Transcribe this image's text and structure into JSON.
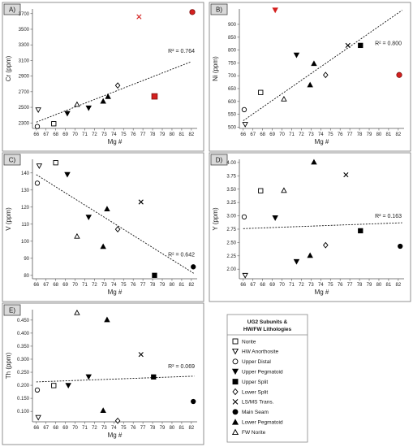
{
  "chart_data": [
    {
      "type": "scatter",
      "panel_label": "A)",
      "xlabel": "Mg #",
      "ylabel": "Cr (ppm)",
      "xticks": [
        66,
        67,
        68,
        69,
        70,
        71,
        72,
        73,
        74,
        75,
        76,
        77,
        78,
        79,
        80,
        81,
        82
      ],
      "yticks": [
        2300,
        2500,
        2700,
        2900,
        3100,
        3300,
        3500,
        3700
      ],
      "xlim": [
        65.6,
        82.6
      ],
      "ylim": [
        2230,
        3760
      ],
      "r2_label": "R² = 0.764",
      "trend": [
        [
          66,
          2310
        ],
        [
          82,
          3085
        ]
      ],
      "points": [
        {
          "lith": "norite",
          "x": 67.8,
          "y": 2290
        },
        {
          "lith": "hw_anorthosite",
          "x": 66.2,
          "y": 2465
        },
        {
          "lith": "upper_distal",
          "x": 66.1,
          "y": 2255
        },
        {
          "lith": "upper_pegmatoid",
          "x": 69.2,
          "y": 2420
        },
        {
          "lith": "upper_pegmatoid",
          "x": 71.4,
          "y": 2490
        },
        {
          "lith": "upper_split",
          "x": 78.2,
          "y": 2640,
          "outlier": true
        },
        {
          "lith": "lower_split",
          "x": 74.4,
          "y": 2780
        },
        {
          "lith": "ls_ms_trans",
          "x": 76.6,
          "y": 3660,
          "outlier": true
        },
        {
          "lith": "main_seam",
          "x": 82.1,
          "y": 3720,
          "outlier": true
        },
        {
          "lith": "lower_pegmatoid",
          "x": 72.9,
          "y": 2580
        },
        {
          "lith": "lower_pegmatoid",
          "x": 73.4,
          "y": 2640
        },
        {
          "lith": "fw_norite",
          "x": 70.2,
          "y": 2540
        }
      ]
    },
    {
      "type": "scatter",
      "panel_label": "B)",
      "xlabel": "Mg #",
      "ylabel": "Ni (ppm)",
      "xticks": [
        66,
        67,
        68,
        69,
        70,
        71,
        72,
        73,
        74,
        75,
        76,
        77,
        78,
        79,
        80,
        81,
        82
      ],
      "yticks": [
        500,
        550,
        600,
        650,
        700,
        750,
        800,
        850,
        900
      ],
      "xlim": [
        65.6,
        82.6
      ],
      "ylim": [
        495,
        960
      ],
      "r2_label": "R² = 0.800",
      "trend": [
        [
          66,
          525
        ],
        [
          82.4,
          955
        ]
      ],
      "points": [
        {
          "lith": "norite",
          "x": 67.8,
          "y": 635
        },
        {
          "lith": "hw_anorthosite",
          "x": 66.2,
          "y": 510
        },
        {
          "lith": "upper_distal",
          "x": 66.1,
          "y": 568
        },
        {
          "lith": "upper_pegmatoid",
          "x": 69.3,
          "y": 955,
          "outlier": true
        },
        {
          "lith": "upper_pegmatoid",
          "x": 71.5,
          "y": 780
        },
        {
          "lith": "upper_split",
          "x": 78.1,
          "y": 818
        },
        {
          "lith": "lower_split",
          "x": 74.5,
          "y": 703
        },
        {
          "lith": "ls_ms_trans",
          "x": 76.8,
          "y": 818
        },
        {
          "lith": "main_seam",
          "x": 82.1,
          "y": 703,
          "outlier": true
        },
        {
          "lith": "lower_pegmatoid",
          "x": 72.9,
          "y": 665
        },
        {
          "lith": "lower_pegmatoid",
          "x": 73.3,
          "y": 748
        },
        {
          "lith": "fw_norite",
          "x": 70.2,
          "y": 610
        }
      ]
    },
    {
      "type": "scatter",
      "panel_label": "C)",
      "xlabel": "Mg #",
      "ylabel": "V (ppm)",
      "xticks": [
        66,
        67,
        68,
        69,
        70,
        71,
        72,
        73,
        74,
        75,
        76,
        77,
        78,
        79,
        80,
        81,
        82
      ],
      "yticks": [
        80,
        90,
        100,
        110,
        120,
        130,
        140
      ],
      "xlim": [
        65.6,
        82.6
      ],
      "ylim": [
        78,
        148
      ],
      "r2_label": "R² = 0.642",
      "trend": [
        [
          66,
          139
        ],
        [
          82.3,
          81
        ]
      ],
      "points": [
        {
          "lith": "norite",
          "x": 68.0,
          "y": 146
        },
        {
          "lith": "hw_anorthosite",
          "x": 66.3,
          "y": 144
        },
        {
          "lith": "upper_distal",
          "x": 66.1,
          "y": 134
        },
        {
          "lith": "upper_pegmatoid",
          "x": 69.2,
          "y": 139
        },
        {
          "lith": "upper_pegmatoid",
          "x": 71.4,
          "y": 114
        },
        {
          "lith": "upper_split",
          "x": 78.2,
          "y": 80
        },
        {
          "lith": "lower_split",
          "x": 74.4,
          "y": 107
        },
        {
          "lith": "ls_ms_trans",
          "x": 76.8,
          "y": 123
        },
        {
          "lith": "main_seam",
          "x": 82.2,
          "y": 85
        },
        {
          "lith": "lower_pegmatoid",
          "x": 72.9,
          "y": 97
        },
        {
          "lith": "lower_pegmatoid",
          "x": 73.3,
          "y": 119
        },
        {
          "lith": "fw_norite",
          "x": 70.2,
          "y": 103
        }
      ]
    },
    {
      "type": "scatter",
      "panel_label": "D)",
      "xlabel": "Mg #",
      "ylabel": "Y (ppm)",
      "xticks": [
        66,
        67,
        68,
        69,
        70,
        71,
        72,
        73,
        74,
        75,
        76,
        77,
        78,
        79,
        80,
        81,
        82
      ],
      "yticks": [
        2.0,
        2.25,
        2.5,
        2.75,
        3.0,
        3.25,
        3.5,
        3.75,
        4.0
      ],
      "ytick_labels": [
        "2.00",
        "2.25",
        "2.50",
        "2.75",
        "3.00",
        "3.25",
        "3.50",
        "3.75",
        "4.00"
      ],
      "xlim": [
        65.6,
        82.6
      ],
      "ylim": [
        1.82,
        4.06
      ],
      "r2_label": "R² = 0.163",
      "trend": [
        [
          66,
          2.76
        ],
        [
          82.4,
          2.87
        ]
      ],
      "points": [
        {
          "lith": "norite",
          "x": 67.8,
          "y": 3.47
        },
        {
          "lith": "hw_anorthosite",
          "x": 66.2,
          "y": 1.88
        },
        {
          "lith": "upper_distal",
          "x": 66.1,
          "y": 2.98
        },
        {
          "lith": "upper_pegmatoid",
          "x": 69.3,
          "y": 2.96
        },
        {
          "lith": "upper_pegmatoid",
          "x": 71.5,
          "y": 2.14
        },
        {
          "lith": "upper_split",
          "x": 78.1,
          "y": 2.72
        },
        {
          "lith": "lower_split",
          "x": 74.5,
          "y": 2.45
        },
        {
          "lith": "ls_ms_trans",
          "x": 76.6,
          "y": 3.77
        },
        {
          "lith": "main_seam",
          "x": 82.2,
          "y": 2.43
        },
        {
          "lith": "lower_pegmatoid",
          "x": 72.9,
          "y": 2.26
        },
        {
          "lith": "lower_pegmatoid",
          "x": 73.3,
          "y": 4.01
        },
        {
          "lith": "fw_norite",
          "x": 70.2,
          "y": 3.48
        }
      ]
    },
    {
      "type": "scatter",
      "panel_label": "E)",
      "xlabel": "Mg #",
      "ylabel": "Th (ppm)",
      "xticks": [
        66,
        67,
        68,
        69,
        70,
        71,
        72,
        73,
        74,
        75,
        76,
        77,
        78,
        79,
        80,
        81,
        82
      ],
      "yticks": [
        0.1,
        0.15,
        0.2,
        0.25,
        0.3,
        0.35,
        0.4,
        0.45
      ],
      "ytick_labels": [
        "0.100",
        "0.150",
        "0.200",
        "0.250",
        "0.300",
        "0.350",
        "0.400",
        "0.450"
      ],
      "xlim": [
        65.6,
        82.6
      ],
      "ylim": [
        0.06,
        0.49
      ],
      "r2_label": "R² = 0.069",
      "trend": [
        [
          66,
          0.213
        ],
        [
          82.3,
          0.235
        ]
      ],
      "points": [
        {
          "lith": "norite",
          "x": 67.8,
          "y": 0.199
        },
        {
          "lith": "hw_anorthosite",
          "x": 66.2,
          "y": 0.076
        },
        {
          "lith": "upper_distal",
          "x": 66.1,
          "y": 0.182
        },
        {
          "lith": "upper_pegmatoid",
          "x": 69.3,
          "y": 0.199
        },
        {
          "lith": "upper_pegmatoid",
          "x": 71.4,
          "y": 0.232
        },
        {
          "lith": "upper_split",
          "x": 78.1,
          "y": 0.232
        },
        {
          "lith": "lower_split",
          "x": 74.4,
          "y": 0.064
        },
        {
          "lith": "ls_ms_trans",
          "x": 76.8,
          "y": 0.318
        },
        {
          "lith": "main_seam",
          "x": 82.2,
          "y": 0.138
        },
        {
          "lith": "lower_pegmatoid",
          "x": 72.9,
          "y": 0.104
        },
        {
          "lith": "lower_pegmatoid",
          "x": 73.3,
          "y": 0.452
        },
        {
          "lith": "fw_norite",
          "x": 70.2,
          "y": 0.479
        }
      ]
    }
  ],
  "legend": {
    "title_line1": "UG2 Subunits &",
    "title_line2": "HW/FW Lithologies",
    "items": [
      {
        "key": "norite",
        "label": "Norite"
      },
      {
        "key": "hw_anorthosite",
        "label": "HW Anorthosite"
      },
      {
        "key": "upper_distal",
        "label": "Upper Distal"
      },
      {
        "key": "upper_pegmatoid",
        "label": "Upper Pegmatoid"
      },
      {
        "key": "upper_split",
        "label": "Upper Split"
      },
      {
        "key": "lower_split",
        "label": "Lower Split"
      },
      {
        "key": "ls_ms_trans",
        "label": "LS/MS Trans."
      },
      {
        "key": "main_seam",
        "label": "Main Seam"
      },
      {
        "key": "lower_pegmatoid",
        "label": "Lower Pegmatoid"
      },
      {
        "key": "fw_norite",
        "label": "FW Norite"
      }
    ]
  },
  "colors": {
    "marker": "#000000",
    "outlier": "#d4201f",
    "axis": "#555555",
    "trend": "#111111",
    "label_box": "#d9d9d9"
  }
}
